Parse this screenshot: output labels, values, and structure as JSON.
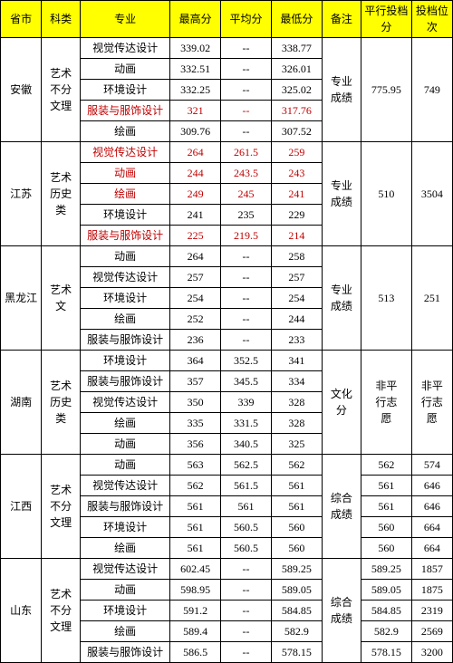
{
  "headers": {
    "province": "省市",
    "category": "科类",
    "major": "专业",
    "maxScore": "最高分",
    "avgScore": "平均分",
    "minScore": "最低分",
    "note": "备注",
    "parallelScore": "平行投档分",
    "rank": "投档位次"
  },
  "groups": [
    {
      "province": "安徽",
      "category": "艺术不分文理",
      "note": "专业成绩",
      "parallelScore": "775.95",
      "rank": "749",
      "rows": [
        {
          "major": "视觉传达设计",
          "max": "339.02",
          "avg": "--",
          "min": "338.77",
          "red": false
        },
        {
          "major": "动画",
          "max": "332.51",
          "avg": "--",
          "min": "326.01",
          "red": false
        },
        {
          "major": "环境设计",
          "max": "332.25",
          "avg": "--",
          "min": "325.02",
          "red": false
        },
        {
          "major": "服装与服饰设计",
          "max": "321",
          "avg": "--",
          "min": "317.76",
          "red": true
        },
        {
          "major": "绘画",
          "max": "309.76",
          "avg": "--",
          "min": "307.52",
          "red": false
        }
      ]
    },
    {
      "province": "江苏",
      "category": "艺术历史类",
      "note": "专业成绩",
      "parallelScore": "510",
      "rank": "3504",
      "rows": [
        {
          "major": "视觉传达设计",
          "max": "264",
          "avg": "261.5",
          "min": "259",
          "red": true
        },
        {
          "major": "动画",
          "max": "244",
          "avg": "243.5",
          "min": "243",
          "red": true
        },
        {
          "major": "绘画",
          "max": "249",
          "avg": "245",
          "min": "241",
          "red": true
        },
        {
          "major": "环境设计",
          "max": "241",
          "avg": "235",
          "min": "229",
          "red": false
        },
        {
          "major": "服装与服饰设计",
          "max": "225",
          "avg": "219.5",
          "min": "214",
          "red": true
        }
      ]
    },
    {
      "province": "黑龙江",
      "category": "艺术文",
      "note": "专业成绩",
      "parallelScore": "513",
      "rank": "251",
      "rows": [
        {
          "major": "动画",
          "max": "264",
          "avg": "--",
          "min": "258",
          "red": false
        },
        {
          "major": "视觉传达设计",
          "max": "257",
          "avg": "--",
          "min": "257",
          "red": false
        },
        {
          "major": "环境设计",
          "max": "254",
          "avg": "--",
          "min": "254",
          "red": false
        },
        {
          "major": "绘画",
          "max": "252",
          "avg": "--",
          "min": "244",
          "red": false
        },
        {
          "major": "服装与服饰设计",
          "max": "236",
          "avg": "--",
          "min": "233",
          "red": false
        }
      ]
    },
    {
      "province": "湖南",
      "category": "艺术历史类",
      "note": "文化分",
      "parallelScore": "非平行志愿",
      "rank": "非平行志愿",
      "rows": [
        {
          "major": "环境设计",
          "max": "364",
          "avg": "352.5",
          "min": "341",
          "red": false
        },
        {
          "major": "服装与服饰设计",
          "max": "357",
          "avg": "345.5",
          "min": "334",
          "red": false
        },
        {
          "major": "视觉传达设计",
          "max": "350",
          "avg": "339",
          "min": "328",
          "red": false
        },
        {
          "major": "绘画",
          "max": "335",
          "avg": "331.5",
          "min": "328",
          "red": false
        },
        {
          "major": "动画",
          "max": "356",
          "avg": "340.5",
          "min": "325",
          "red": false
        }
      ]
    },
    {
      "province": "江西",
      "category": "艺术不分文理",
      "note": "综合成绩",
      "parallelScore": "",
      "rank": "",
      "perRowExtra": true,
      "rows": [
        {
          "major": "动画",
          "max": "563",
          "avg": "562.5",
          "min": "562",
          "red": false,
          "p": "562",
          "r": "574"
        },
        {
          "major": "视觉传达设计",
          "max": "562",
          "avg": "561.5",
          "min": "561",
          "red": false,
          "p": "561",
          "r": "646"
        },
        {
          "major": "服装与服饰设计",
          "max": "561",
          "avg": "561",
          "min": "561",
          "red": false,
          "p": "561",
          "r": "646"
        },
        {
          "major": "环境设计",
          "max": "561",
          "avg": "560.5",
          "min": "560",
          "red": false,
          "p": "560",
          "r": "664"
        },
        {
          "major": "绘画",
          "max": "561",
          "avg": "560.5",
          "min": "560",
          "red": false,
          "p": "560",
          "r": "664"
        }
      ]
    },
    {
      "province": "山东",
      "category": "艺术不分文理",
      "note": "综合成绩",
      "parallelScore": "",
      "rank": "",
      "perRowExtra": true,
      "rows": [
        {
          "major": "视觉传达设计",
          "max": "602.45",
          "avg": "--",
          "min": "589.25",
          "red": false,
          "p": "589.25",
          "r": "1857"
        },
        {
          "major": "动画",
          "max": "598.95",
          "avg": "--",
          "min": "589.05",
          "red": false,
          "p": "589.05",
          "r": "1875"
        },
        {
          "major": "环境设计",
          "max": "591.2",
          "avg": "--",
          "min": "584.85",
          "red": false,
          "p": "584.85",
          "r": "2319"
        },
        {
          "major": "绘画",
          "max": "589.4",
          "avg": "--",
          "min": "582.9",
          "red": false,
          "p": "582.9",
          "r": "2569"
        },
        {
          "major": "服装与服饰设计",
          "max": "586.5",
          "avg": "--",
          "min": "578.15",
          "red": false,
          "p": "578.15",
          "r": "3200"
        }
      ]
    }
  ]
}
